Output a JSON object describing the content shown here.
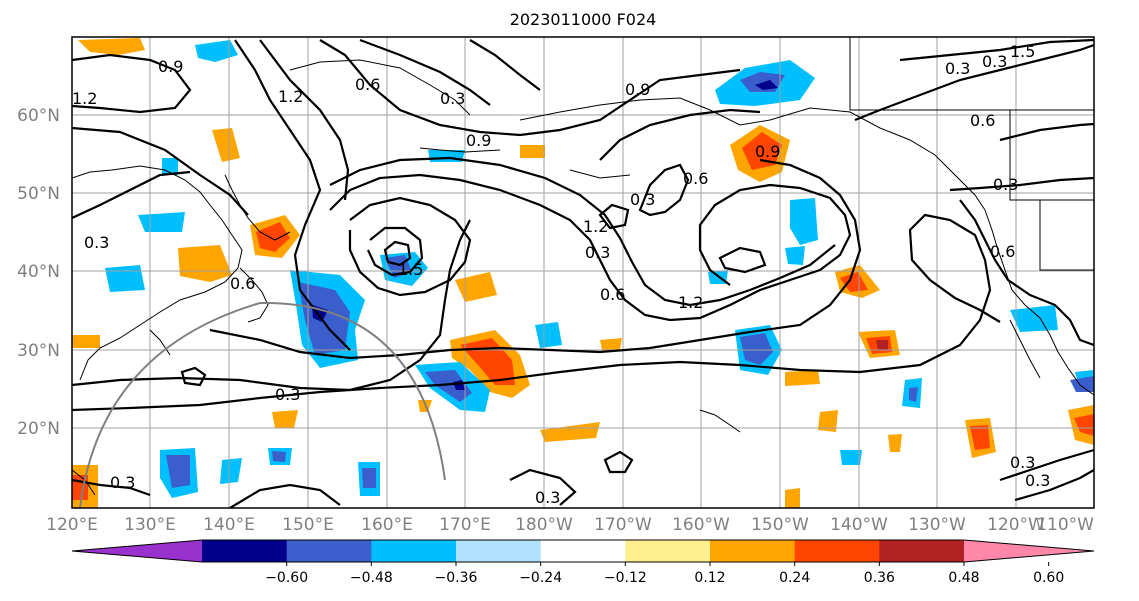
{
  "title": "2023011000 F024",
  "lat_labels": [
    "60°N",
    "50°N",
    "40°N",
    "30°N",
    "20°N"
  ],
  "lon_labels": [
    "120°E",
    "130°E",
    "140°E",
    "150°E",
    "160°E",
    "170°E",
    "180°W",
    "170°W",
    "160°W",
    "150°W",
    "140°W",
    "130°W",
    "120°W",
    "110°W"
  ],
  "colorbar": {
    "colors": [
      "#9932cc",
      "#00008b",
      "#3a5fcd",
      "#00bfff",
      "#b0e2ff",
      "#ffffff",
      "#fff08f",
      "#ffa500",
      "#ff4500",
      "#b22222",
      "#ff88aa"
    ],
    "tick_labels": [
      "−0.60",
      "−0.48",
      "−0.36",
      "−0.24",
      "−0.12",
      "0.12",
      "0.24",
      "0.36",
      "0.48",
      "0.60"
    ]
  },
  "contour_labels": [
    {
      "text": "0.9"
    },
    {
      "text": "1.2"
    },
    {
      "text": "0.6"
    },
    {
      "text": "0.3"
    },
    {
      "text": "1.2"
    },
    {
      "text": "0.9"
    },
    {
      "text": "0.9"
    },
    {
      "text": "0.3"
    },
    {
      "text": "0.6"
    },
    {
      "text": "0.9"
    },
    {
      "text": "0.3"
    },
    {
      "text": "0.6"
    },
    {
      "text": "0.3"
    },
    {
      "text": "1.2"
    },
    {
      "text": "0.3"
    },
    {
      "text": "0.6"
    },
    {
      "text": "1.2"
    },
    {
      "text": "1.5"
    },
    {
      "text": "0.3"
    },
    {
      "text": "0.6"
    },
    {
      "text": "0.3"
    },
    {
      "text": "0.6"
    },
    {
      "text": "0.3"
    },
    {
      "text": "0.3"
    },
    {
      "text": "0.3"
    },
    {
      "text": "0.3"
    },
    {
      "text": "0.3"
    },
    {
      "text": "1.5"
    }
  ]
}
